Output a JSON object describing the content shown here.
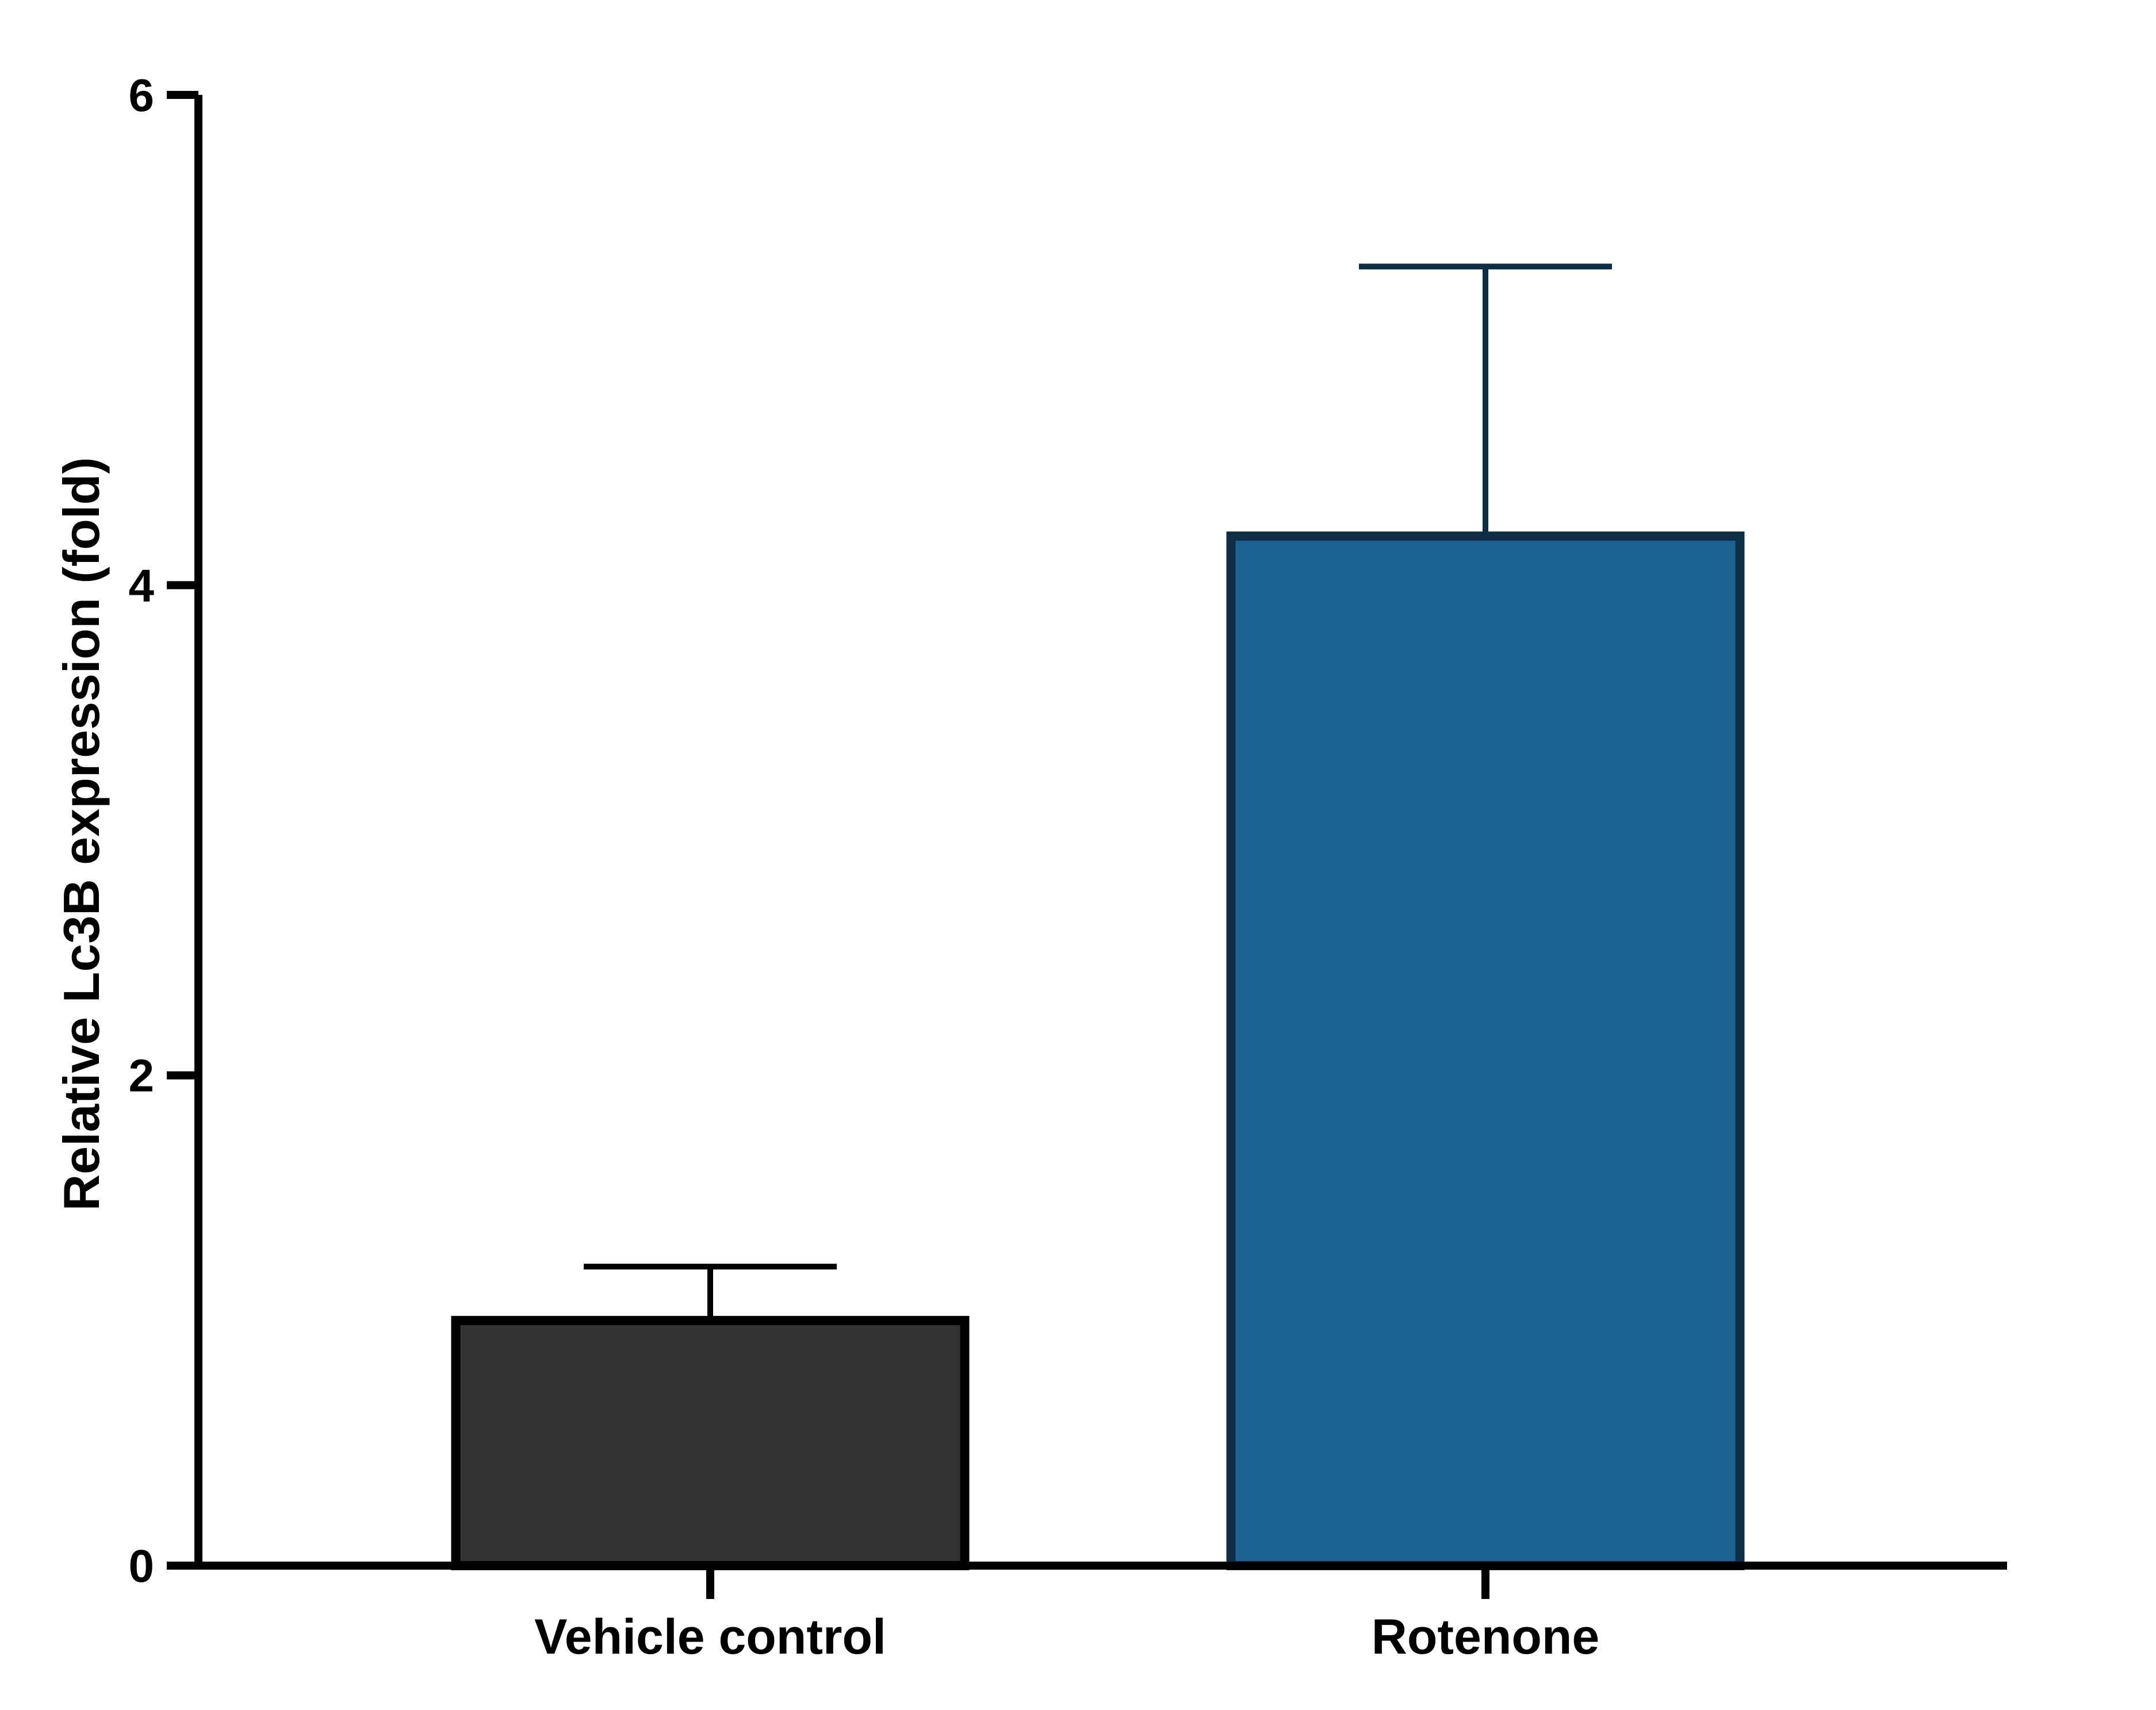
{
  "chart_data": {
    "type": "bar",
    "categories": [
      "Vehicle control",
      "Rotenone"
    ],
    "values": [
      1.0,
      4.2
    ],
    "error_upper": [
      0.22,
      1.1
    ],
    "ylabel": "Relative Lc3B expression (fold)",
    "xlabel": "",
    "ylim": [
      0,
      6
    ],
    "yticks": [
      "0",
      "2",
      "4",
      "6"
    ],
    "grid": false,
    "legend": "none",
    "colors": {
      "bar_fills": [
        "#333333",
        "#1d6392"
      ],
      "bar_strokes": [
        "#000000",
        "#0d2e45"
      ],
      "axis": "#000000"
    }
  }
}
